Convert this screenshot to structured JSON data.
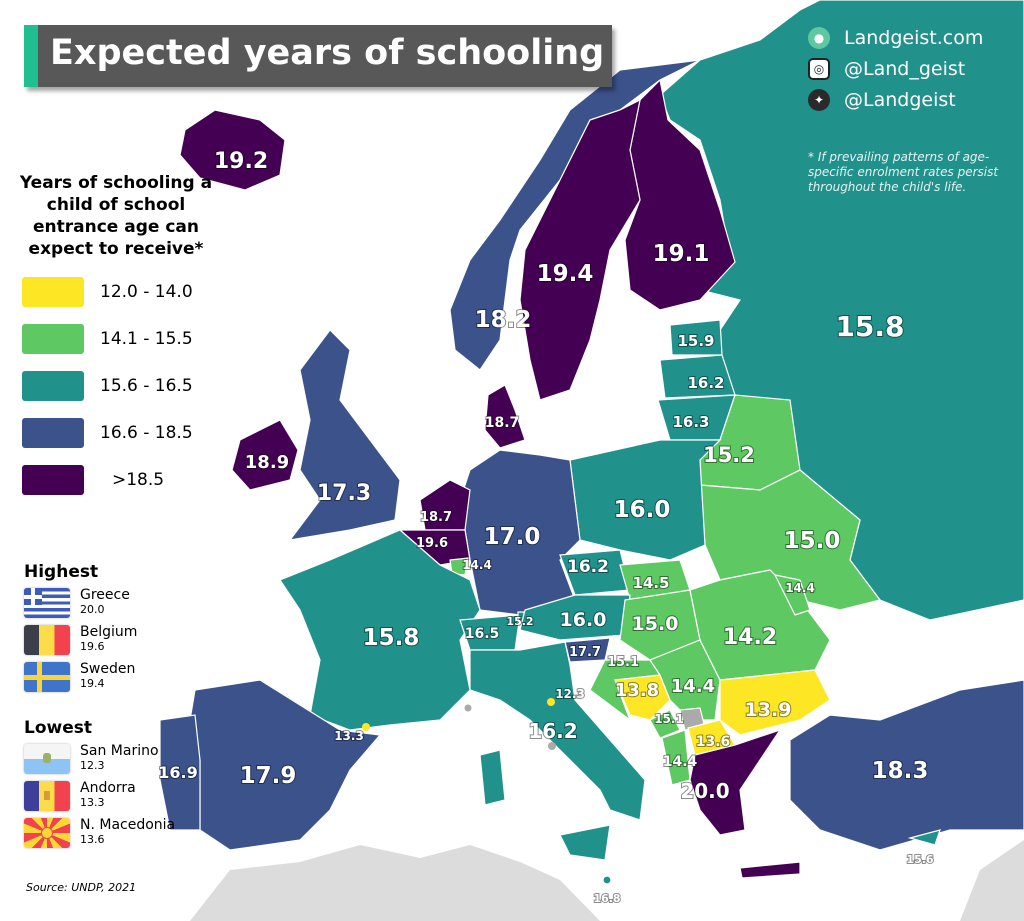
{
  "title": "Expected years of schooling",
  "colors": {
    "bin1": "#fde725",
    "bin2": "#5ec962",
    "bin3": "#21918c",
    "bin4": "#3b528b",
    "bin5": "#440154",
    "no_data": "#aaaaaa",
    "other_land": "#dcdcdc"
  },
  "legend": {
    "title": "Years of schooling a child of school entrance age can expect to receive*",
    "bins": [
      {
        "label": "12.0 - 14.0",
        "color": "#fde725"
      },
      {
        "label": "14.1 - 15.5",
        "color": "#5ec962"
      },
      {
        "label": "15.6 - 16.5",
        "color": "#21918c"
      },
      {
        "label": "16.6 - 18.5",
        "color": "#3b528b"
      },
      {
        "label": ">18.5",
        "color": "#440154"
      }
    ]
  },
  "highest": {
    "heading": "Highest",
    "items": [
      {
        "country": "Greece",
        "value": "20.0",
        "flag": "greece-flag"
      },
      {
        "country": "Belgium",
        "value": "19.6",
        "flag": "belgium-flag"
      },
      {
        "country": "Sweden",
        "value": "19.4",
        "flag": "sweden-flag"
      }
    ]
  },
  "lowest": {
    "heading": "Lowest",
    "items": [
      {
        "country": "San Marino",
        "value": "12.3",
        "flag": "san-marino-flag"
      },
      {
        "country": "Andorra",
        "value": "13.3",
        "flag": "andorra-flag"
      },
      {
        "country": "N. Macedonia",
        "value": "13.6",
        "flag": "north-macedonia-flag"
      }
    ]
  },
  "social": {
    "website": "Landgeist.com",
    "instagram": "@Land_geist",
    "twitter": "@Landgeist"
  },
  "footnote": "* If prevailing patterns of age-specific enrolment rates persist throughout the child's life.",
  "source": "Source: UNDP, 2021",
  "countries": {
    "iceland": "19.2",
    "norway": "18.2",
    "sweden": "19.4",
    "finland": "19.1",
    "russia": "15.8",
    "estonia": "15.9",
    "latvia": "16.2",
    "lithuania": "16.3",
    "belarus": "15.2",
    "ukraine": "15.0",
    "poland": "16.0",
    "denmark": "18.7",
    "ireland": "18.9",
    "uk": "17.3",
    "netherlands": "18.7",
    "belgium": "19.6",
    "luxembourg": "14.4",
    "germany": "17.0",
    "czechia": "16.2",
    "slovakia": "14.5",
    "austria": "16.0",
    "hungary": "15.0",
    "switzerland": "16.5",
    "liechtenstein": "15.2",
    "moldova": "14.4",
    "romania": "14.2",
    "slovenia": "17.7",
    "croatia": "15.1",
    "bosnia": "13.8",
    "serbia": "14.4",
    "montenegro": "15.1",
    "north_macedonia": "13.6",
    "albania": "14.4",
    "bulgaria": "13.9",
    "greece": "20.0",
    "turkey": "18.3",
    "cyprus": "15.6",
    "malta": "16.8",
    "italy": "16.2",
    "san_marino": "12.3",
    "france": "15.8",
    "andorra": "13.3",
    "spain": "17.9",
    "portugal": "16.9"
  }
}
